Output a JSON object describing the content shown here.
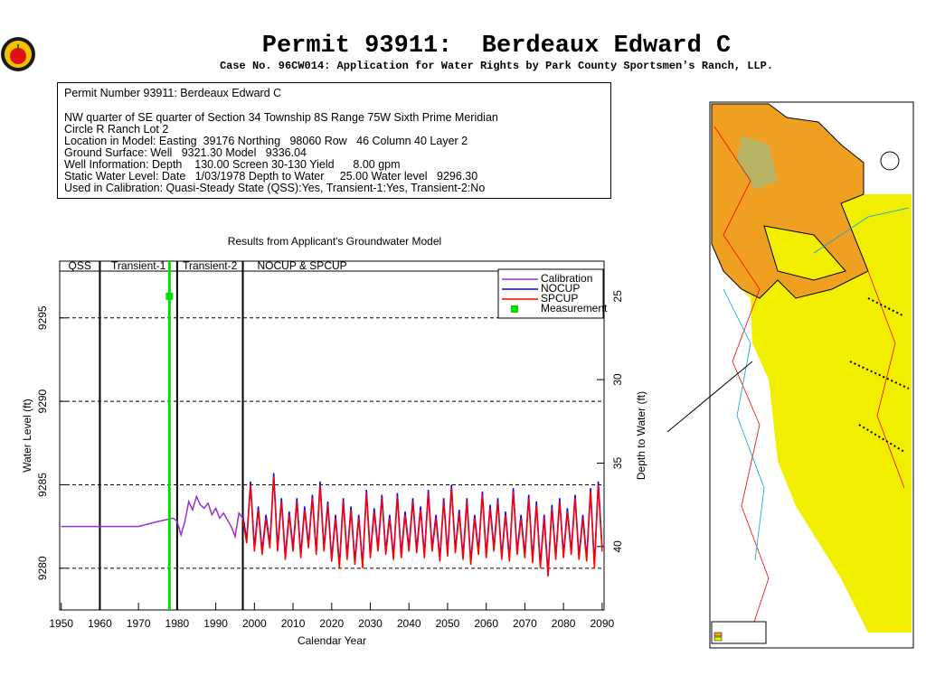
{
  "header": {
    "title": "Permit 93911:  Berdeaux Edward C",
    "subtitle": "Case No. 96CW014: Application for Water Rights by Park County Sportsmen's Ranch, LLP."
  },
  "info": {
    "lines": [
      "Permit Number 93911: Berdeaux Edward C",
      "NW quarter of SE quarter of Section 34 Township 8S Range 75W Sixth Prime Meridian",
      "Circle R Ranch Lot 2",
      "Location in Model: Easting  39176 Northing   98060 Row   46 Column 40 Layer 2",
      "Ground Surface: Well   9321.30 Model   9336.04",
      "Well Information: Depth    130.00 Screen 30-130 Yield      8.00 gpm",
      "Static Water Level: Date   1/03/1978 Depth to Water     25.00 Water level   9296.30",
      "Used in Calibration: Quasi-Steady State (QSS):Yes, Transient-1:Yes, Transient-2:No"
    ]
  },
  "chart_data": {
    "type": "line",
    "title": "Results from Applicant's Groundwater Model",
    "x_label": "Calendar Year",
    "y_label": "Water Level (ft)",
    "y2_label": "Depth to Water (ft)",
    "xlim": [
      1949.6,
      2090.5
    ],
    "xticks": [
      1950,
      1960,
      1970,
      1980,
      1990,
      2000,
      2010,
      2020,
      2030,
      2040,
      2050,
      2060,
      2070,
      2080,
      2090
    ],
    "ylim": [
      9277.5,
      9298.4
    ],
    "yticks": [
      9280,
      9285,
      9290,
      9295
    ],
    "y2lim": [
      43.8,
      22.9
    ],
    "y2ticks": [
      25,
      30,
      35,
      40
    ],
    "grid": true,
    "legend": "upper right",
    "periods": [
      "QSS",
      "Transient-1",
      "Transient-2",
      "NOCUP & SPCUP"
    ],
    "period_boundaries": [
      1960,
      1980,
      1997
    ],
    "series": [
      {
        "name": "Calibration",
        "color": "#9b30d0",
        "mode": "line",
        "x": [
          1950,
          1970,
          1975,
          1979,
          1980,
          1981,
          1982,
          1983,
          1984,
          1985,
          1986,
          1987,
          1988,
          1989,
          1990,
          1991,
          1992,
          1993,
          1994,
          1995,
          1996,
          1997
        ],
        "values": [
          9282.5,
          9282.5,
          9282.8,
          9283,
          9282.8,
          9282,
          9282.8,
          9284,
          9283.5,
          9284.3,
          9283.8,
          9283.6,
          9283.9,
          9283.2,
          9283.6,
          9283.0,
          9283.3,
          9282.9,
          9282.5,
          9281.9,
          9283.3,
          9283.0
        ]
      },
      {
        "name": "NOCUP",
        "color": "#0000ff",
        "mode": "line",
        "x": [
          1997,
          1998,
          1999,
          2000,
          2001,
          2002,
          2003,
          2004,
          2005,
          2006,
          2007,
          2008,
          2009,
          2010,
          2011,
          2012,
          2013,
          2014,
          2015,
          2016,
          2017,
          2018,
          2019,
          2020,
          2021,
          2022,
          2023,
          2024,
          2025,
          2026,
          2027,
          2028,
          2029,
          2030,
          2031,
          2032,
          2033,
          2034,
          2035,
          2036,
          2037,
          2038,
          2039,
          2040,
          2041,
          2042,
          2043,
          2044,
          2045,
          2046,
          2047,
          2048,
          2049,
          2050,
          2051,
          2052,
          2053,
          2054,
          2055,
          2056,
          2057,
          2058,
          2059,
          2060,
          2061,
          2062,
          2063,
          2064,
          2065,
          2066,
          2067,
          2068,
          2069,
          2070,
          2071,
          2072,
          2073,
          2074,
          2075,
          2076,
          2077,
          2078,
          2079,
          2080,
          2081,
          2082,
          2083,
          2084,
          2085,
          2086,
          2087,
          2088,
          2089,
          2090
        ],
        "values": [
          9283.2,
          9281.7,
          9285.2,
          9281.2,
          9283.7,
          9281.0,
          9283.2,
          9281.4,
          9285.7,
          9281.2,
          9284.2,
          9280.7,
          9283.4,
          9281.2,
          9284.2,
          9280.8,
          9283.7,
          9281.4,
          9284.4,
          9281.0,
          9285.2,
          9281.2,
          9284.0,
          9280.6,
          9283.2,
          9280.2,
          9284.2,
          9280.7,
          9283.7,
          9280.4,
          9283.2,
          9280.2,
          9284.7,
          9280.8,
          9283.6,
          9281.2,
          9284.4,
          9281.0,
          9283.2,
          9280.7,
          9284.5,
          9280.8,
          9283.4,
          9281.2,
          9284.2,
          9281.1,
          9283.7,
          9280.8,
          9284.7,
          9281.2,
          9283.2,
          9280.6,
          9284.2,
          9280.9,
          9285.0,
          9281.1,
          9283.5,
          9280.7,
          9284.2,
          9280.4,
          9283.2,
          9281.0,
          9284.6,
          9280.8,
          9283.8,
          9281.2,
          9284.2,
          9280.7,
          9283.4,
          9280.6,
          9284.8,
          9281.0,
          9283.2,
          9280.8,
          9284.4,
          9280.5,
          9284.0,
          9280.2,
          9283.2,
          9279.7,
          9283.8,
          9280.7,
          9284.2,
          9280.8,
          9283.6,
          9281.0,
          9284.4,
          9280.7,
          9283.2,
          9280.6,
          9284.8,
          9280.2,
          9285.2,
          9281.2
        ]
      },
      {
        "name": "SPCUP",
        "color": "#ff0000",
        "mode": "line",
        "x": [
          1997,
          1998,
          1999,
          2000,
          2001,
          2002,
          2003,
          2004,
          2005,
          2006,
          2007,
          2008,
          2009,
          2010,
          2011,
          2012,
          2013,
          2014,
          2015,
          2016,
          2017,
          2018,
          2019,
          2020,
          2021,
          2022,
          2023,
          2024,
          2025,
          2026,
          2027,
          2028,
          2029,
          2030,
          2031,
          2032,
          2033,
          2034,
          2035,
          2036,
          2037,
          2038,
          2039,
          2040,
          2041,
          2042,
          2043,
          2044,
          2045,
          2046,
          2047,
          2048,
          2049,
          2050,
          2051,
          2052,
          2053,
          2054,
          2055,
          2056,
          2057,
          2058,
          2059,
          2060,
          2061,
          2062,
          2063,
          2064,
          2065,
          2066,
          2067,
          2068,
          2069,
          2070,
          2071,
          2072,
          2073,
          2074,
          2075,
          2076,
          2077,
          2078,
          2079,
          2080,
          2081,
          2082,
          2083,
          2084,
          2085,
          2086,
          2087,
          2088,
          2089,
          2090
        ],
        "values": [
          9283.0,
          9281.5,
          9285.0,
          9281.0,
          9283.5,
          9280.8,
          9283.0,
          9281.2,
          9285.5,
          9281.0,
          9284.0,
          9280.5,
          9283.2,
          9281.0,
          9284.0,
          9280.6,
          9283.5,
          9281.2,
          9284.2,
          9280.8,
          9285.0,
          9281.0,
          9283.8,
          9280.4,
          9283.0,
          9280.0,
          9284.0,
          9280.5,
          9283.5,
          9280.2,
          9283.0,
          9280.0,
          9284.5,
          9280.6,
          9283.4,
          9281.0,
          9284.2,
          9280.8,
          9283.0,
          9280.5,
          9284.3,
          9280.6,
          9283.2,
          9281.0,
          9284.0,
          9280.9,
          9283.5,
          9280.6,
          9284.5,
          9281.0,
          9283.0,
          9280.4,
          9284.0,
          9280.7,
          9284.8,
          9280.9,
          9283.3,
          9280.5,
          9284.0,
          9280.2,
          9283.0,
          9280.8,
          9284.4,
          9280.6,
          9283.6,
          9281.0,
          9284.0,
          9280.5,
          9283.2,
          9280.4,
          9284.6,
          9280.8,
          9283.0,
          9280.6,
          9284.2,
          9280.3,
          9283.8,
          9280.0,
          9283.0,
          9279.5,
          9283.6,
          9280.5,
          9284.0,
          9280.6,
          9283.4,
          9280.8,
          9284.2,
          9280.5,
          9283.0,
          9280.4,
          9284.6,
          9280.0,
          9285.0,
          9281.0
        ]
      },
      {
        "name": "Measurement",
        "color": "#00e000",
        "mode": "marker",
        "x": [
          1978
        ],
        "values": [
          9296.3
        ]
      }
    ]
  }
}
